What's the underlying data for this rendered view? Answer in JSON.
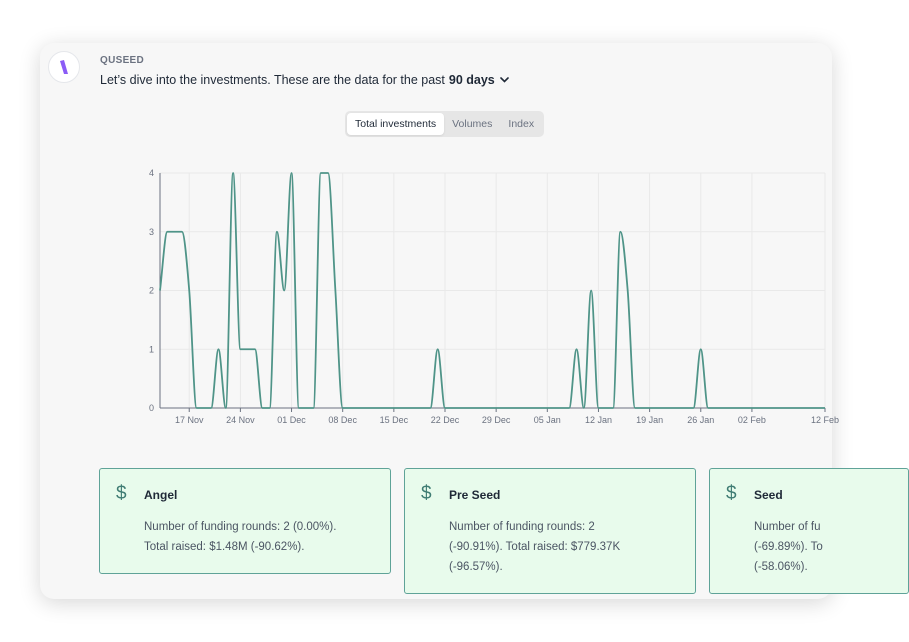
{
  "header": {
    "sender": "QUSEED",
    "message": "Let’s dive into the investments. These are the data for the past",
    "period": "90 days"
  },
  "tabs": [
    {
      "label": "Total investments",
      "active": true
    },
    {
      "label": "Volumes",
      "active": false
    },
    {
      "label": "Index",
      "active": false
    }
  ],
  "colors": {
    "line": "#4f9488",
    "card_border": "#5fa398",
    "card_bg": "#e8fbec",
    "brand": "#8b5cf6"
  },
  "chart_data": {
    "type": "line",
    "title": "",
    "xlabel": "",
    "ylabel": "",
    "ylim": [
      0,
      4
    ],
    "yticks": [
      0,
      1,
      2,
      3,
      4
    ],
    "xlim": [
      "2023-11-13",
      "2024-02-12"
    ],
    "xticks": [
      "17 Nov",
      "24 Nov",
      "01 Dec",
      "08 Dec",
      "15 Dec",
      "22 Dec",
      "29 Dec",
      "05 Jan",
      "12 Jan",
      "19 Jan",
      "26 Jan",
      "02 Feb",
      "12 Feb"
    ],
    "grid": true,
    "series": [
      {
        "points": [
          [
            "2023-11-13",
            2
          ],
          [
            "2023-11-14",
            3
          ],
          [
            "2023-11-15",
            3
          ],
          [
            "2023-11-16",
            3
          ],
          [
            "2023-11-17",
            2
          ],
          [
            "2023-11-18",
            0
          ],
          [
            "2023-11-19",
            0
          ],
          [
            "2023-11-20",
            0
          ],
          [
            "2023-11-21",
            1
          ],
          [
            "2023-11-22",
            0
          ],
          [
            "2023-11-23",
            4
          ],
          [
            "2023-11-24",
            1
          ],
          [
            "2023-11-25",
            1
          ],
          [
            "2023-11-26",
            1
          ],
          [
            "2023-11-27",
            0
          ],
          [
            "2023-11-28",
            0
          ],
          [
            "2023-11-29",
            3
          ],
          [
            "2023-11-30",
            2
          ],
          [
            "2023-12-01",
            4
          ],
          [
            "2023-12-02",
            0
          ],
          [
            "2023-12-03",
            0
          ],
          [
            "2023-12-04",
            0
          ],
          [
            "2023-12-05",
            4
          ],
          [
            "2023-12-06",
            4
          ],
          [
            "2023-12-07",
            2
          ],
          [
            "2023-12-08",
            0
          ],
          [
            "2023-12-20",
            0
          ],
          [
            "2023-12-21",
            1
          ],
          [
            "2023-12-22",
            0
          ],
          [
            "2024-01-08",
            0
          ],
          [
            "2024-01-09",
            1
          ],
          [
            "2024-01-10",
            0
          ],
          [
            "2024-01-11",
            2
          ],
          [
            "2024-01-12",
            0
          ],
          [
            "2024-01-14",
            0
          ],
          [
            "2024-01-15",
            3
          ],
          [
            "2024-01-16",
            2
          ],
          [
            "2024-01-17",
            0
          ],
          [
            "2024-01-25",
            0
          ],
          [
            "2024-01-26",
            1
          ],
          [
            "2024-01-27",
            0
          ],
          [
            "2024-02-12",
            0
          ]
        ]
      }
    ]
  },
  "stats": [
    {
      "name": "Angel",
      "lines": [
        "Number of funding rounds: 2 (0.00%).",
        "Total raised: $1.48M (-90.62%)."
      ]
    },
    {
      "name": "Pre Seed",
      "lines": [
        "Number of funding rounds: 2",
        "(-90.91%). Total raised: $779.37K",
        "(-96.57%)."
      ]
    },
    {
      "name": "Seed",
      "lines": [
        "Number of fu",
        "(-69.89%). To",
        "(-58.06%)."
      ]
    }
  ]
}
